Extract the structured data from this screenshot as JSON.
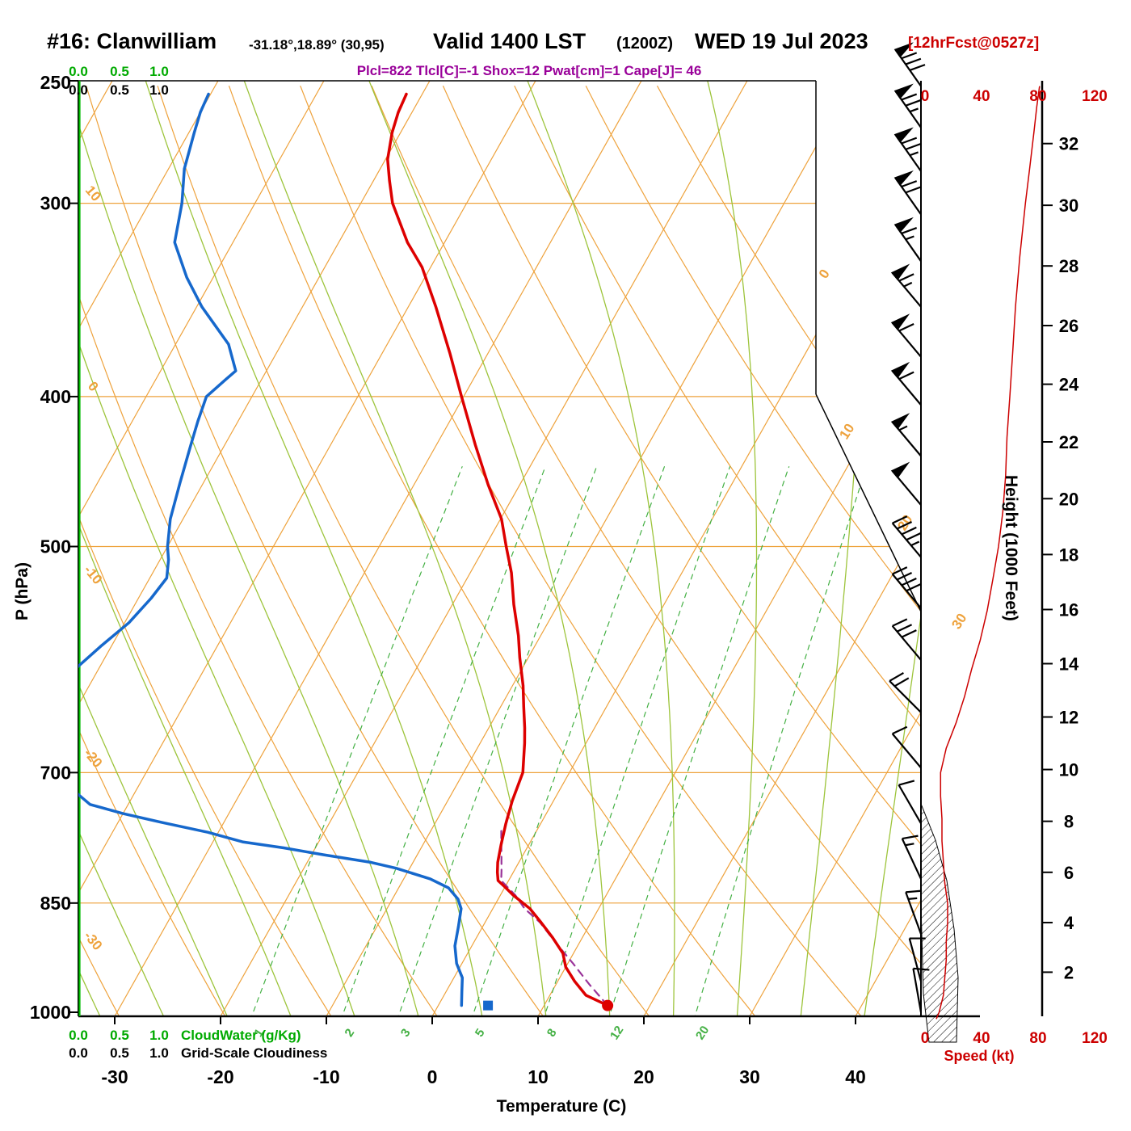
{
  "header": {
    "station": "#16: Clanwilliam",
    "coords": "-31.18°,18.89° (30,95)",
    "valid_main": "Valid 1400 LST",
    "valid_z": "(1200Z)",
    "valid_date": "WED 19 Jul 2023",
    "fcst_tag": "[12hrFcst@0527z]",
    "indices": "Plcl=822 Tlcl[C]=-1 Shox=12 Pwat[cm]=1 Cape[J]= 46"
  },
  "axes": {
    "pressure_label": "P (hPa)",
    "temperature_label": "Temperature (C)",
    "height_label": "Height (1000 Feet)",
    "speed_label": "Speed (kt)",
    "cloud_scale": [
      "0.0",
      "0.5",
      "1.0"
    ],
    "cloudwater_label": "CloudWater (g/Kg)",
    "cloudiness_label": "Grid-Scale Cloudiness"
  },
  "colors": {
    "temperature": "#dd0000",
    "dewpoint": "#1668cc",
    "parcel": "#993399",
    "grid_orange": "#eea23c",
    "moist_green": "#9dc43b",
    "mixing_green": "#44b044",
    "cloudwater_green": "#00bb00",
    "wind": "#000000",
    "speed_curve": "#cc0000",
    "indices_text": "#990099",
    "speed_text": "#cc0000"
  },
  "chart_data": {
    "type": "skewt-log-p",
    "pressure_ticks_hpa": [
      250,
      300,
      400,
      500,
      700,
      850,
      1000
    ],
    "temperature_ticks_c": [
      -30,
      -20,
      -10,
      0,
      10,
      20,
      30,
      40
    ],
    "height_ticks_kft": [
      2,
      4,
      6,
      8,
      10,
      12,
      14,
      16,
      18,
      20,
      22,
      24,
      26,
      28,
      30,
      32
    ],
    "speed_ticks_kt": [
      0,
      40,
      80,
      120
    ],
    "dry_adiabat_labels_c": [
      10,
      0,
      -10,
      -20,
      -30
    ],
    "isotherm_labels_c": [
      0,
      10,
      20,
      30
    ],
    "mixing_ratio_lines_gkg": [
      1,
      2,
      3,
      5,
      8,
      12,
      20
    ],
    "moist_adiabats_c": [
      -37,
      -31,
      -25,
      -19,
      -13,
      -7,
      -1,
      5,
      11,
      17,
      23,
      29,
      35,
      41
    ],
    "indices": {
      "plcl_hpa": 822,
      "tlcl_c": -1,
      "showalter": 12,
      "pwat_cm": 1,
      "cape_j": 46
    },
    "surface": {
      "pressure_hpa": 990,
      "temperature_c": 16,
      "dewpoint_c": 4.7
    },
    "temperature_profile_p_t": [
      [
        990,
        16
      ],
      [
        975,
        13.4
      ],
      [
        955,
        11.6
      ],
      [
        935,
        10
      ],
      [
        916,
        9
      ],
      [
        895,
        7.2
      ],
      [
        875,
        5.3
      ],
      [
        857,
        3.5
      ],
      [
        840,
        1.2
      ],
      [
        830,
        0
      ],
      [
        822,
        -1
      ],
      [
        812,
        -1.5
      ],
      [
        800,
        -2
      ],
      [
        780,
        -2.6
      ],
      [
        755,
        -3.3
      ],
      [
        730,
        -3.9
      ],
      [
        700,
        -4.4
      ],
      [
        670,
        -5.8
      ],
      [
        655,
        -6.6
      ],
      [
        635,
        -7.8
      ],
      [
        615,
        -9
      ],
      [
        590,
        -10.8
      ],
      [
        571,
        -12.1
      ],
      [
        545,
        -14.2
      ],
      [
        520,
        -16.1
      ],
      [
        500,
        -18
      ],
      [
        480,
        -19.9
      ],
      [
        456,
        -23
      ],
      [
        430,
        -26.3
      ],
      [
        400,
        -30.2
      ],
      [
        375,
        -33.6
      ],
      [
        350,
        -37.4
      ],
      [
        330,
        -40.8
      ],
      [
        318,
        -43.5
      ],
      [
        300,
        -47
      ],
      [
        290,
        -48.5
      ],
      [
        281,
        -49.8
      ],
      [
        270,
        -50.8
      ],
      [
        262,
        -51.3
      ],
      [
        255,
        -51.5
      ]
    ],
    "dewpoint_profile_p_t": [
      [
        990,
        2.2
      ],
      [
        970,
        1.5
      ],
      [
        950,
        0.8
      ],
      [
        930,
        -0.5
      ],
      [
        906,
        -1.6
      ],
      [
        880,
        -2.3
      ],
      [
        857,
        -3
      ],
      [
        845,
        -3.8
      ],
      [
        831,
        -5.3
      ],
      [
        820,
        -7.5
      ],
      [
        807,
        -11.3
      ],
      [
        800,
        -14
      ],
      [
        791,
        -18.9
      ],
      [
        783,
        -23
      ],
      [
        776,
        -27.2
      ],
      [
        765,
        -31
      ],
      [
        754,
        -35.8
      ],
      [
        744,
        -40
      ],
      [
        734,
        -43.6
      ],
      [
        715,
        -46.5
      ],
      [
        700,
        -48.2
      ],
      [
        680,
        -50.2
      ],
      [
        660,
        -51.6
      ],
      [
        640,
        -52.3
      ],
      [
        620,
        -52.4
      ],
      [
        600,
        -52.2
      ],
      [
        580,
        -51
      ],
      [
        560,
        -49.6
      ],
      [
        540,
        -48.8
      ],
      [
        524,
        -48.4
      ],
      [
        510,
        -49.2
      ],
      [
        500,
        -50
      ],
      [
        480,
        -51.2
      ],
      [
        455,
        -52.2
      ],
      [
        430,
        -53.2
      ],
      [
        415,
        -53.8
      ],
      [
        400,
        -54.3
      ],
      [
        390,
        -53.4
      ],
      [
        385,
        -52.9
      ],
      [
        370,
        -55
      ],
      [
        350,
        -59.5
      ],
      [
        335,
        -62.5
      ],
      [
        318,
        -65.5
      ],
      [
        300,
        -66.9
      ],
      [
        285,
        -68.5
      ],
      [
        270,
        -69.5
      ],
      [
        262,
        -70
      ],
      [
        255,
        -70.2
      ]
    ],
    "parcel_path_p_t": [
      [
        990,
        16
      ],
      [
        960,
        13.2
      ],
      [
        930,
        10.5
      ],
      [
        900,
        7.6
      ],
      [
        875,
        5.2
      ],
      [
        857,
        3
      ],
      [
        840,
        1.4
      ],
      [
        822,
        -0.7
      ],
      [
        810,
        -1.2
      ],
      [
        790,
        -2.1
      ],
      [
        775,
        -2.8
      ],
      [
        760,
        -3.5
      ]
    ],
    "wind_profile_p_kt_dir": [
      [
        252,
        80,
        325
      ],
      [
        268,
        75,
        325
      ],
      [
        286,
        75,
        325
      ],
      [
        305,
        70,
        325
      ],
      [
        327,
        65,
        325
      ],
      [
        350,
        65,
        320
      ],
      [
        377,
        60,
        320
      ],
      [
        405,
        60,
        320
      ],
      [
        437,
        55,
        320
      ],
      [
        470,
        50,
        320
      ],
      [
        508,
        45,
        320
      ],
      [
        548,
        40,
        320
      ],
      [
        592,
        30,
        320
      ],
      [
        640,
        22,
        315
      ],
      [
        695,
        10,
        320
      ],
      [
        755,
        12,
        330
      ],
      [
        820,
        14,
        335
      ],
      [
        890,
        15,
        340
      ],
      [
        955,
        12,
        345
      ],
      [
        1000,
        10,
        350
      ]
    ],
    "speed_profile_p_kt": [
      [
        1010,
        8
      ],
      [
        1000,
        10
      ],
      [
        975,
        13
      ],
      [
        950,
        14
      ],
      [
        925,
        15
      ],
      [
        900,
        15
      ],
      [
        875,
        16
      ],
      [
        850,
        16
      ],
      [
        825,
        14
      ],
      [
        800,
        13
      ],
      [
        775,
        12
      ],
      [
        750,
        12
      ],
      [
        725,
        11
      ],
      [
        700,
        11
      ],
      [
        675,
        15
      ],
      [
        650,
        22
      ],
      [
        625,
        28
      ],
      [
        600,
        33
      ],
      [
        575,
        39
      ],
      [
        550,
        44
      ],
      [
        525,
        48
      ],
      [
        500,
        52
      ],
      [
        475,
        55
      ],
      [
        450,
        57
      ],
      [
        425,
        58
      ],
      [
        400,
        60
      ],
      [
        375,
        62
      ],
      [
        350,
        64
      ],
      [
        325,
        67
      ],
      [
        300,
        71
      ],
      [
        285,
        74
      ],
      [
        270,
        77
      ],
      [
        260,
        79
      ],
      [
        252,
        81
      ]
    ]
  }
}
